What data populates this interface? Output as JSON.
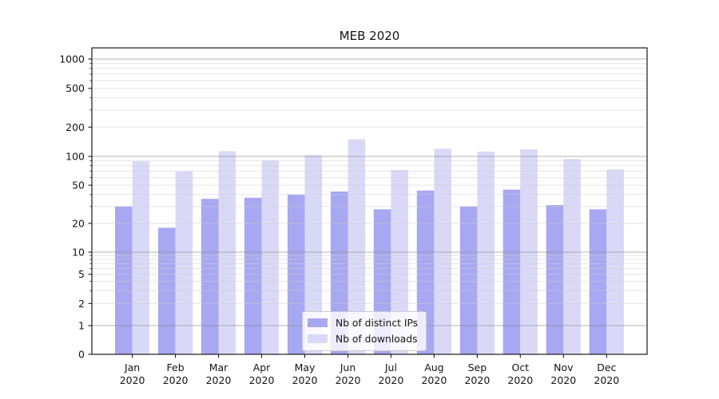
{
  "chart_data": {
    "type": "bar",
    "title": "MEB 2020",
    "categories": [
      "Jan 2020",
      "Feb 2020",
      "Mar 2020",
      "Apr 2020",
      "May 2020",
      "Jun 2020",
      "Jul 2020",
      "Aug 2020",
      "Sep 2020",
      "Oct 2020",
      "Nov 2020",
      "Dec 2020"
    ],
    "series": [
      {
        "name": "Nb of distinct IPs",
        "color": "#a7a7f2",
        "values": [
          30,
          18,
          36,
          37,
          40,
          43,
          28,
          44,
          30,
          45,
          31,
          28
        ]
      },
      {
        "name": "Nb of downloads",
        "color": "#d9d9f7",
        "values": [
          89,
          70,
          113,
          91,
          103,
          150,
          72,
          120,
          112,
          118,
          94,
          73
        ]
      }
    ],
    "xlabel": "",
    "ylabel": "",
    "yscale": "symlog",
    "yticks": [
      0,
      1,
      2,
      5,
      10,
      20,
      50,
      100,
      200,
      500,
      1000
    ],
    "ylim": [
      0,
      1300
    ],
    "grid": "horizontal major and minor gridlines",
    "legend_position": "lower center"
  }
}
